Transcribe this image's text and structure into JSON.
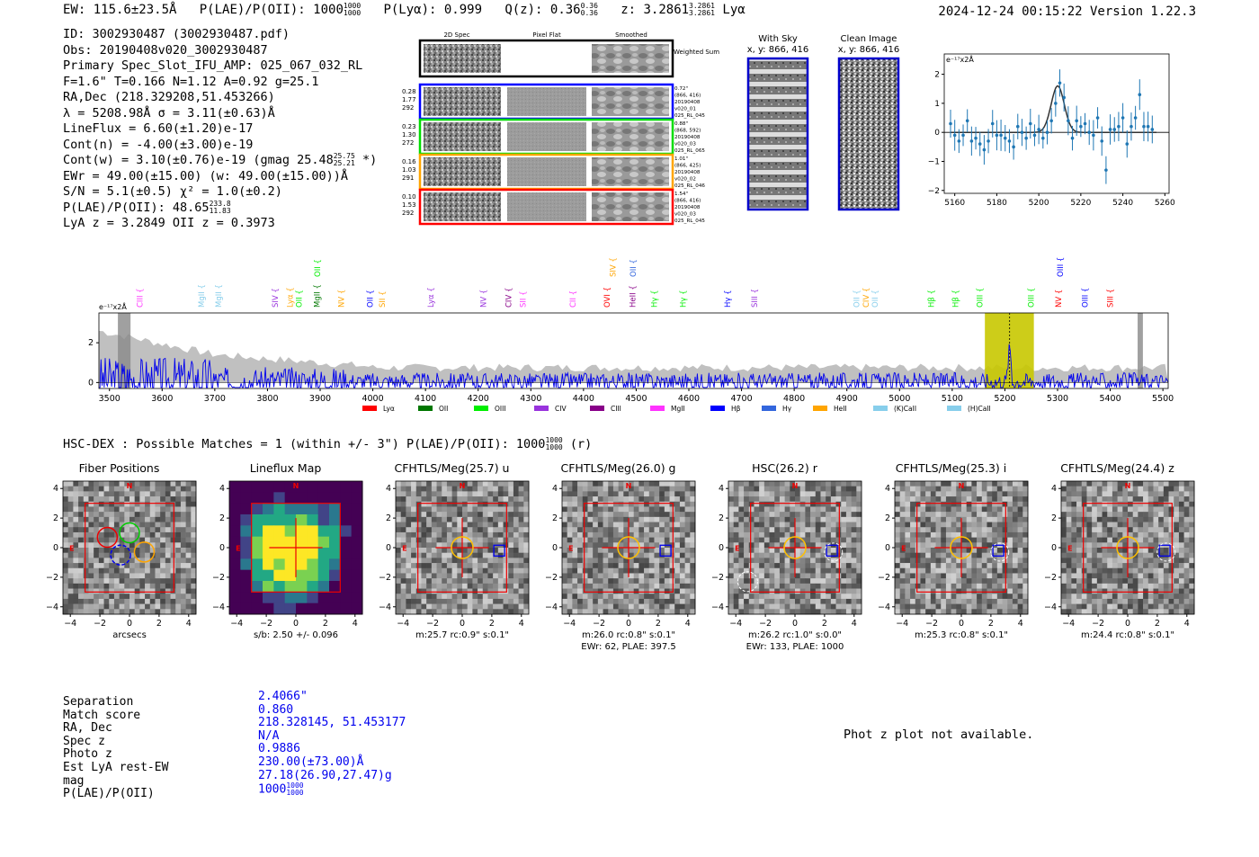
{
  "header": {
    "left_a": "EW: 115.6±23.5Å",
    "left_b": "P(LAE)/P(OII): 1000",
    "left_b_hi": "1000",
    "left_b_lo": "1000",
    "left_c": "P(Lyα): 0.999",
    "left_d": "Q(z): 0.36",
    "left_d_hi": "0.36",
    "left_d_lo": "0.36",
    "left_e": "z: 3.2861",
    "left_e_hi": "3.2861",
    "left_e_lo": "3.2861",
    "left_f": "Lyα",
    "right": "2024-12-24 00:15:22  Version 1.22.3"
  },
  "info": {
    "id": "ID: 3002930487 (3002930487.pdf)",
    "obs": "Obs: 20190408v020_3002930487",
    "primary": "Primary Spec_Slot_IFU_AMP: 025_067_032_RL",
    "fwhm": "F=1.6\"  T=0.166  N=1.12  A=0.92  g=25.1",
    "radec": "RA,Dec (218.329208,51.453266)",
    "lambda": "λ = 5208.98Å  σ = 3.11(±0.63)Å",
    "lineflux": "LineFlux = 6.60(±1.20)e-17",
    "contn": "Cont(n) = -4.00(±3.00)e-19",
    "contw": "Cont(w) = 3.10(±0.76)e-19 (gmag 25.48",
    "contw_hi": "25.75",
    "contw_lo": "25.21",
    "contw_end": "*)",
    "ewr": "EWr = 49.00(±15.00) (w: 49.00(±15.00))Å",
    "sn": "S/N = 5.1(±0.5)  χ² = 1.0(±0.2)",
    "plae": "P(LAE)/P(OII): 48.65",
    "plae_hi": "233.8",
    "plae_lo": "11.83",
    "z": "LyA z = 3.2849  OII z = 0.3973"
  },
  "cutout_panel": {
    "col_titles": [
      "2D Spec",
      "Pixel Flat",
      "Smoothed"
    ],
    "weighted_label": "Weighted Sum",
    "rows": [
      {
        "left": [
          "0.28",
          "1.77",
          "292"
        ],
        "right": [
          "0.72\"",
          "(866, 416)",
          "20190408",
          "v020_01",
          "025_RL_045"
        ],
        "color": "#0000ff"
      },
      {
        "left": [
          "0.23",
          "1.30",
          "272"
        ],
        "right": [
          "0.88\"",
          "(868, 592)",
          "20190408",
          "v020_03",
          "025_RL_065"
        ],
        "color": "#00dd00"
      },
      {
        "left": [
          "0.16",
          "1.03",
          "291"
        ],
        "right": [
          "1.01\"",
          "(866, 425)",
          "20190408",
          "v020_02",
          "025_RL_046"
        ],
        "color": "#ffa500"
      },
      {
        "left": [
          "0.10",
          "1.53",
          "292"
        ],
        "right": [
          "1.54\"",
          "(866, 416)",
          "20190408",
          "v020_03",
          "025_RL_045"
        ],
        "color": "#ff0000"
      }
    ]
  },
  "sky_panels": {
    "with_sky_title": "With Sky",
    "with_sky_sub": "x, y: 866, 416",
    "clean_title": "Clean Image",
    "clean_sub": "x, y: 866, 416"
  },
  "chart_data": [
    {
      "type": "line",
      "title": "",
      "ylabel": "e⁻¹⁷x2Å",
      "xlabel": "",
      "xlim": [
        5155,
        5262
      ],
      "ylim": [
        -2.1,
        2.7
      ],
      "xticks": [
        "5160",
        "5180",
        "5200",
        "5220",
        "5240",
        "5260"
      ],
      "yticks": [
        "2",
        "1",
        "0",
        "−1",
        "−2"
      ],
      "x": [
        5158,
        5160,
        5162,
        5164,
        5166,
        5168,
        5170,
        5172,
        5174,
        5176,
        5178,
        5180,
        5182,
        5184,
        5186,
        5188,
        5190,
        5192,
        5194,
        5196,
        5198,
        5200,
        5202,
        5204,
        5206,
        5208,
        5210,
        5212,
        5214,
        5216,
        5218,
        5220,
        5222,
        5224,
        5226,
        5228,
        5230,
        5232,
        5234,
        5236,
        5238,
        5240,
        5242,
        5244,
        5246,
        5248,
        5250,
        5252,
        5254
      ],
      "values": [
        0.3,
        -0.1,
        -0.3,
        -0.1,
        0.4,
        -0.3,
        -0.2,
        -0.4,
        -0.6,
        -0.3,
        0.3,
        -0.1,
        -0.1,
        -0.2,
        -0.3,
        -0.5,
        0.2,
        0.0,
        -0.2,
        0.3,
        -0.1,
        0.1,
        -0.2,
        0.0,
        0.4,
        1.0,
        1.7,
        1.2,
        0.4,
        -0.2,
        0.4,
        0.2,
        0.3,
        0.0,
        -0.1,
        0.5,
        -0.3,
        -1.3,
        0.1,
        0.1,
        0.2,
        0.5,
        -0.4,
        0.2,
        0.5,
        1.3,
        0.2,
        0.2,
        0.1
      ],
      "model_peak": 1.6,
      "model_center": 5209,
      "model_sigma": 3.11
    },
    {
      "type": "line",
      "ylabel": "e⁻¹⁷x2Å",
      "xlim": [
        3480,
        5510
      ],
      "ylim": [
        -0.3,
        3.5
      ],
      "xticks": [
        "3500",
        "3600",
        "3700",
        "3800",
        "3900",
        "4000",
        "4100",
        "4200",
        "4300",
        "4400",
        "4500",
        "4600",
        "4700",
        "4800",
        "4900",
        "5000",
        "5100",
        "5200",
        "5300",
        "5400",
        "5500"
      ],
      "yticks": [
        "2",
        "0"
      ],
      "highlight_center": 5208.98,
      "legend": [
        {
          "label": "Lyα",
          "color": "#ff0000"
        },
        {
          "label": "OII",
          "color": "#007700"
        },
        {
          "label": "OIII",
          "color": "#00ee00"
        },
        {
          "label": "CIV",
          "color": "#9933dd"
        },
        {
          "label": "CIII",
          "color": "#880088"
        },
        {
          "label": "MgII",
          "color": "#ff33ff"
        },
        {
          "label": "Hβ",
          "color": "#0000ff"
        },
        {
          "label": "Hγ",
          "color": "#3366dd"
        },
        {
          "label": "HeII",
          "color": "#ffa500"
        },
        {
          "label": "(K)CaII",
          "color": "#87ceeb"
        },
        {
          "label": "(H)CaII",
          "color": "#87ceeb"
        }
      ],
      "line_labels": [
        {
          "label": "CIII",
          "x": 3558,
          "color": "#ff33ff",
          "level": 0
        },
        {
          "label": "MgII",
          "x": 3675,
          "color": "#87ceeb",
          "level": 0
        },
        {
          "label": "MgII",
          "x": 3707,
          "color": "#87ceeb",
          "level": 0
        },
        {
          "label": "SIV",
          "x": 3815,
          "color": "#9933dd",
          "level": 0
        },
        {
          "label": "Lyα",
          "x": 3843,
          "color": "#ffa500",
          "level": 0
        },
        {
          "label": "OII",
          "x": 3860,
          "color": "#00ee00",
          "level": 0
        },
        {
          "label": "MgII",
          "x": 3894,
          "color": "#007700",
          "level": 0
        },
        {
          "label": "OII",
          "x": 3895,
          "color": "#00ee00",
          "level": 1
        },
        {
          "label": "NV",
          "x": 3940,
          "color": "#ffa500",
          "level": 0
        },
        {
          "label": "OII",
          "x": 3995,
          "color": "#0000ff",
          "level": 0
        },
        {
          "label": "SII",
          "x": 4018,
          "color": "#ffa500",
          "level": 0
        },
        {
          "label": "Lyα",
          "x": 4110,
          "color": "#9933dd",
          "level": 0
        },
        {
          "label": "NV",
          "x": 4210,
          "color": "#9933dd",
          "level": 0
        },
        {
          "label": "CIV",
          "x": 4258,
          "color": "#880088",
          "level": 0
        },
        {
          "label": "SII",
          "x": 4285,
          "color": "#ff33ff",
          "level": 0
        },
        {
          "label": "CII",
          "x": 4380,
          "color": "#ff33ff",
          "level": 0
        },
        {
          "label": "OVI",
          "x": 4445,
          "color": "#ff0000",
          "level": 0
        },
        {
          "label": "SIV",
          "x": 4456,
          "color": "#ffa500",
          "level": 1
        },
        {
          "label": "HeII",
          "x": 4493,
          "color": "#880088",
          "level": 0
        },
        {
          "label": "OII",
          "x": 4494,
          "color": "#3366dd",
          "level": 1
        },
        {
          "label": "Hγ",
          "x": 4534,
          "color": "#00ee00",
          "level": 0
        },
        {
          "label": "Hγ",
          "x": 4589,
          "color": "#00ee00",
          "level": 0
        },
        {
          "label": "Hγ",
          "x": 4673,
          "color": "#0000ff",
          "level": 0
        },
        {
          "label": "SIII",
          "x": 4725,
          "color": "#9933dd",
          "level": 0
        },
        {
          "label": "OII",
          "x": 4918,
          "color": "#87ceeb",
          "level": 0
        },
        {
          "label": "CIV",
          "x": 4936,
          "color": "#ffa500",
          "level": 0
        },
        {
          "label": "OII",
          "x": 4953,
          "color": "#87ceeb",
          "level": 0
        },
        {
          "label": "Hβ",
          "x": 5060,
          "color": "#00ee00",
          "level": 0
        },
        {
          "label": "Hβ",
          "x": 5106,
          "color": "#00ee00",
          "level": 0
        },
        {
          "label": "OIII",
          "x": 5152,
          "color": "#00ee00",
          "level": 0
        },
        {
          "label": "OIII",
          "x": 5250,
          "color": "#00ee00",
          "level": 0
        },
        {
          "label": "NV",
          "x": 5302,
          "color": "#ff0000",
          "level": 0
        },
        {
          "label": "OIII",
          "x": 5305,
          "color": "#0000ff",
          "level": 1
        },
        {
          "label": "OIII",
          "x": 5352,
          "color": "#0000ff",
          "level": 0
        },
        {
          "label": "SIII",
          "x": 5400,
          "color": "#ff0000",
          "level": 0
        }
      ]
    }
  ],
  "hsc": {
    "title": "HSC-DEX : Possible Matches = 1 (within +/- 3\")  P(LAE)/P(OII): 1000",
    "title_hi": "1000",
    "title_lo": "1000",
    "title_end": "(r)"
  },
  "cutouts": [
    {
      "title": "Fiber Positions",
      "caption1": "arcsecs",
      "caption2": "",
      "kind": "fiber"
    },
    {
      "title": "Lineflux Map",
      "caption1": "s/b: 2.50 +/- 0.096",
      "caption2": "",
      "kind": "flux"
    },
    {
      "title": "CFHTLS/Meg(25.7) u",
      "caption1": "m:25.7 rc:0.9\"  s:0.1\"",
      "caption2": "",
      "kind": "img"
    },
    {
      "title": "CFHTLS/Meg(26.0) g",
      "caption1": "m:26.0 rc:0.8\"  s:0.1\"",
      "caption2": "EWr: 62, PLAE: 397.5",
      "kind": "img"
    },
    {
      "title": "HSC(26.2) r",
      "caption1": "m:26.2 rc:1.0\"  s:0.0\"",
      "caption2": "EWr: 133, PLAE: 1000",
      "kind": "img"
    },
    {
      "title": "CFHTLS/Meg(25.3) i",
      "caption1": "m:25.3 rc:0.8\"  s:0.1\"",
      "caption2": "",
      "kind": "img"
    },
    {
      "title": "CFHTLS/Meg(24.4) z",
      "caption1": "m:24.4 rc:0.8\"  s:0.1\"",
      "caption2": "",
      "kind": "img"
    }
  ],
  "cutout_axes": {
    "ticks": [
      "−4",
      "−2",
      "0",
      "2",
      "4"
    ],
    "north": "N",
    "east": "E"
  },
  "match": {
    "labels": [
      "Separation",
      "Match score",
      "RA, Dec",
      "Spec z",
      "Photo z",
      "Est LyA rest-EW",
      "mag",
      "P(LAE)/P(OII)"
    ],
    "values": [
      "2.4066\"",
      "0.860",
      "218.328145, 51.453177",
      "N/A",
      "0.9886",
      "230.00(±73.00)Å",
      "27.18(26.90,27.47)g",
      "1000"
    ],
    "plae_hi": "1000",
    "plae_lo": "1000"
  },
  "photz_msg": "Phot z plot not available."
}
